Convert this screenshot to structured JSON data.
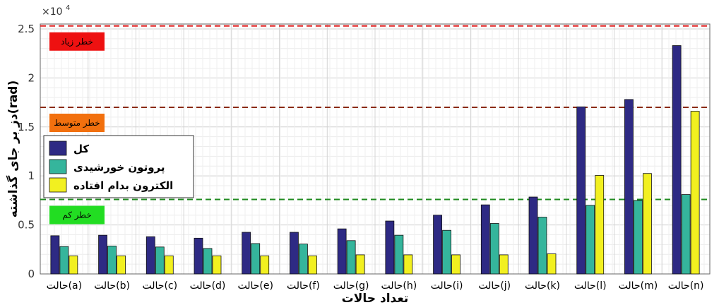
{
  "chart_data": {
    "type": "bar",
    "xlabel": "تعداد حالات",
    "ylabel": "دز بر جای گذاشته(rad)",
    "y_multiplier": "×10",
    "y_multiplier_exp": "4",
    "ylim": [
      0,
      25500
    ],
    "yticks": [
      0,
      5000,
      10000,
      15000,
      20000,
      25000
    ],
    "ytick_labels": [
      "0",
      "0.5",
      "1",
      "1.5",
      "2",
      "2.5"
    ],
    "grid": true,
    "categories": [
      "حالت(a)",
      "حالت(b)",
      "حالت(c)",
      "حالت(d)",
      "حالت(e)",
      "حالت(f)",
      "حالت(g)",
      "حالت(h)",
      "حالت(i)",
      "حالت(j)",
      "حالت(k)",
      "حالت(l)",
      "حالت(m)",
      "حالت(n)"
    ],
    "series": [
      {
        "name": "کل",
        "color": "#2e2a84",
        "values": [
          3900,
          3950,
          3800,
          3650,
          4250,
          4250,
          4600,
          5400,
          6000,
          7050,
          7850,
          17050,
          17800,
          23300
        ]
      },
      {
        "name": "پروتون خورشیدی",
        "color": "#35b59c",
        "values": [
          2800,
          2850,
          2750,
          2600,
          3100,
          3050,
          3400,
          3950,
          4450,
          5150,
          5800,
          7000,
          7500,
          8100
        ]
      },
      {
        "name": "الکترون بدام افتاده",
        "color": "#f2f020",
        "values": [
          1850,
          1850,
          1850,
          1850,
          1850,
          1850,
          1950,
          1950,
          1950,
          1950,
          2050,
          10050,
          10250,
          16600
        ]
      }
    ],
    "legend_position": "left",
    "thresholds": [
      {
        "label": "خطر زیاد",
        "value": 25300,
        "line_color": "#e02020",
        "box_color": "#ee1111"
      },
      {
        "label": "خطر متوسط",
        "value": 17000,
        "line_color": "#8b2a12",
        "box_color": "#f2700e"
      },
      {
        "label": "خطر کم",
        "value": 7600,
        "line_color": "#1f8a1f",
        "box_color": "#22dd22"
      }
    ]
  }
}
